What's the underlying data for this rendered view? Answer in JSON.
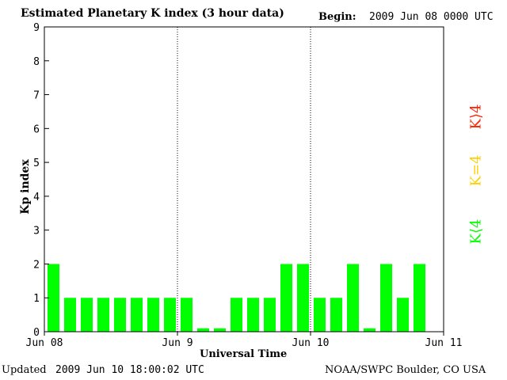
{
  "header": {
    "title": "Estimated Planetary K index (3 hour data)",
    "begin_label": "Begin:",
    "begin_value": "2009 Jun 08 0000 UTC"
  },
  "footer": {
    "updated_label": "Updated",
    "updated_value": "2009 Jun 10 18:00:02 UTC",
    "credit": "NOAA/SWPC Boulder, CO USA"
  },
  "legend": {
    "high": {
      "label": "K⟩4",
      "color": "#ff2000"
    },
    "mid": {
      "label": "K=4",
      "color": "#ffd000"
    },
    "low": {
      "label": "K⟨4",
      "color": "#00ff00"
    }
  },
  "chart_data": {
    "type": "bar",
    "title": "Estimated Planetary K index (3 hour data)",
    "xlabel": "Universal Time",
    "ylabel": "Kp index",
    "ylim": [
      0,
      9
    ],
    "yticks": [
      "0",
      "1",
      "2",
      "3",
      "4",
      "5",
      "6",
      "7",
      "8",
      "9"
    ],
    "xticks": [
      "Jun 08",
      "Jun 9",
      "Jun 10",
      "Jun 11"
    ],
    "day_divisions": 3,
    "bar_interval_hours": 3,
    "bar_color": "#00ff00",
    "values": [
      2,
      1,
      1,
      1,
      1,
      1,
      1,
      1,
      1,
      0.1,
      0.1,
      1,
      1,
      1,
      2,
      2,
      1,
      1,
      2,
      0.1,
      2,
      1,
      2
    ],
    "grid": "dotted vertical lines at day boundaries"
  }
}
